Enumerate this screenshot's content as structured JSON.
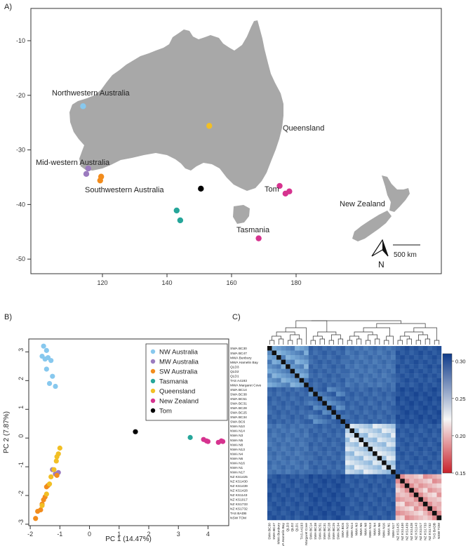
{
  "panels": {
    "a": "A)",
    "b": "B)",
    "c": "C)"
  },
  "colors": {
    "land": "#a8a8a8",
    "nw": "#87c8ee",
    "mw": "#9b7bbf",
    "sw": "#f28c1c",
    "tas": "#26a69a",
    "qld": "#f2bf24",
    "nz": "#d6338f",
    "tom": "#000000"
  },
  "map": {
    "x_ticks": [
      "120",
      "140",
      "160",
      "180"
    ],
    "y_ticks": [
      "-10",
      "-20",
      "-30",
      "-40",
      "-50"
    ],
    "labels": {
      "nw": "Northwestern Australia",
      "mw": "Mid-western Australia",
      "sw": "Southwestern Australia",
      "qld": "Queensland",
      "tom": "Tom",
      "tas": "Tasmania",
      "nz": "New Zealand"
    },
    "scale_label": "500 km",
    "north": "N",
    "sites": [
      {
        "group": "nw",
        "lon": 114.0,
        "lat": -22.0
      },
      {
        "group": "mw",
        "lon": 115.6,
        "lat": -33.4
      },
      {
        "group": "mw",
        "lon": 115.0,
        "lat": -34.4
      },
      {
        "group": "sw",
        "lon": 119.6,
        "lat": -34.9
      },
      {
        "group": "sw",
        "lon": 119.3,
        "lat": -35.6
      },
      {
        "group": "qld",
        "lon": 153.1,
        "lat": -25.6
      },
      {
        "group": "tom",
        "lon": 150.5,
        "lat": -37.1
      },
      {
        "group": "tas",
        "lon": 143.0,
        "lat": -41.1
      },
      {
        "group": "tas",
        "lon": 144.1,
        "lat": -42.9
      },
      {
        "group": "nz",
        "lon": 174.9,
        "lat": -36.6
      },
      {
        "group": "nz",
        "lon": 176.7,
        "lat": -38.0
      },
      {
        "group": "nz",
        "lon": 177.9,
        "lat": -37.6
      },
      {
        "group": "nz",
        "lon": 168.4,
        "lat": -46.2
      }
    ]
  },
  "chart_data": [
    {
      "type": "scatter",
      "xlabel": "PC 1 (14.47%)",
      "ylabel": "PC 2 (7.87%)",
      "xlim": [
        -2.05,
        4.7
      ],
      "ylim": [
        -3.05,
        3.45
      ],
      "x_ticks": [
        -2,
        -1,
        0,
        1,
        2,
        3,
        4
      ],
      "y_ticks": [
        -3,
        -2,
        -1,
        0,
        1,
        2,
        3
      ],
      "legend_position": "top-right",
      "series": [
        {
          "name": "NW Australia",
          "color_key": "nw",
          "points": [
            [
              -1.55,
              3.2
            ],
            [
              -1.45,
              3.05
            ],
            [
              -1.6,
              2.85
            ],
            [
              -1.4,
              2.8
            ],
            [
              -1.5,
              2.75
            ],
            [
              -1.3,
              2.7
            ],
            [
              -1.45,
              2.4
            ],
            [
              -1.25,
              2.15
            ],
            [
              -1.35,
              1.9
            ],
            [
              -1.15,
              1.8
            ]
          ]
        },
        {
          "name": "MW Australia",
          "color_key": "mw",
          "points": [
            [
              -1.25,
              -1.1
            ],
            [
              -1.15,
              -1.25
            ],
            [
              -1.05,
              -1.2
            ]
          ]
        },
        {
          "name": "SW Australia",
          "color_key": "sw",
          "points": [
            [
              -1.4,
              -1.65
            ],
            [
              -1.45,
              -1.7
            ],
            [
              -1.5,
              -2.05
            ],
            [
              -1.55,
              -2.15
            ],
            [
              -1.6,
              -2.3
            ],
            [
              -1.65,
              -2.5
            ],
            [
              -1.75,
              -2.55
            ],
            [
              -1.82,
              -2.8
            ],
            [
              -1.1,
              -1.3
            ]
          ]
        },
        {
          "name": "Tasmania",
          "color_key": "tas",
          "points": [
            [
              3.4,
              0.02
            ]
          ]
        },
        {
          "name": "Queensland",
          "color_key": "qld",
          "points": [
            [
              -1.0,
              -0.35
            ],
            [
              -1.05,
              -0.55
            ],
            [
              -1.1,
              -0.65
            ],
            [
              -1.12,
              -0.8
            ],
            [
              -1.2,
              -1.1
            ],
            [
              -1.3,
              -1.35
            ],
            [
              -1.35,
              -1.6
            ],
            [
              -1.45,
              -1.95
            ],
            [
              -1.6,
              -2.35
            ]
          ]
        },
        {
          "name": "New Zealand",
          "color_key": "nz",
          "points": [
            [
              3.85,
              -0.05
            ],
            [
              3.95,
              -0.1
            ],
            [
              4.0,
              -0.12
            ],
            [
              4.35,
              -0.15
            ],
            [
              4.45,
              -0.1
            ],
            [
              4.5,
              -0.12
            ]
          ]
        },
        {
          "name": "Tom",
          "color_key": "tom",
          "points": [
            [
              1.55,
              0.22
            ]
          ]
        }
      ]
    },
    {
      "type": "heatmap",
      "colorbar_ticks": [
        "0.30",
        "0.25",
        "0.20",
        "0.15"
      ],
      "colorbar_range": [
        0.15,
        0.31
      ],
      "row_labels": [
        "SWA BC30",
        "SWA BC47",
        "MWA Bunbury",
        "MWA Hamelin Bay",
        "QLD3",
        "QLD2",
        "QLD1",
        "TAS A4193",
        "MWA Margaret Cove",
        "SWA BC14",
        "SWA BC38",
        "SWA BC51",
        "SWA BC31",
        "SWA BC28",
        "SWA BC25",
        "SWA BC34",
        "SWA BC6",
        "NWA N10",
        "NWA N14",
        "NWA N3",
        "NWA N5",
        "NWA N8",
        "NWA N13",
        "NWA N4",
        "NWA N6",
        "NWA N16",
        "NWA N1",
        "NWA N17",
        "NZ KS1425",
        "NZ KS1430",
        "NZ KS1439",
        "NZ KS1428",
        "NZ KS1143",
        "NZ KS1017",
        "NZ KS1733",
        "NZ KS1732",
        "TAS BADB",
        "NSW TOM"
      ],
      "groups": [
        {
          "start": 0,
          "end": 8,
          "within": 0.27
        },
        {
          "start": 9,
          "end": 16,
          "within": 0.285
        },
        {
          "start": 17,
          "end": 27,
          "within": 0.24
        },
        {
          "start": 28,
          "end": 37,
          "within": 0.2
        }
      ]
    }
  ]
}
